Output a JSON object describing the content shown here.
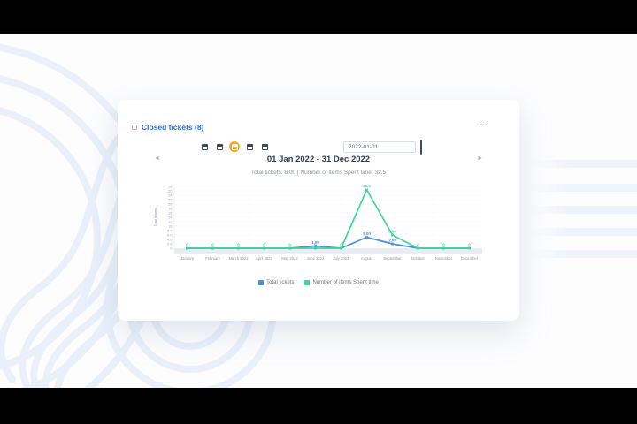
{
  "card": {
    "title": "Closed tickets (8)",
    "accent_color": "#2b6cd9",
    "menu_label": "...",
    "period_selectors": [
      {
        "icon": "calendar-icon",
        "active": false
      },
      {
        "icon": "calendar-icon",
        "active": false
      },
      {
        "icon": "calendar-icon",
        "active": true
      },
      {
        "icon": "calendar-icon",
        "active": false
      },
      {
        "icon": "calendar-icon",
        "active": false
      }
    ],
    "active_period_color": "#f6a821",
    "date_input": {
      "value": "2022-01-01",
      "picker_icon": "calendar-icon"
    },
    "nav": {
      "prev_label": "◄",
      "range_title": "01 Jan 2022 - 31 Dec 2022",
      "next_label": "►"
    },
    "stats_line": "Total tickets: 8.00 | Number of items Spent time: 32.5"
  },
  "chart_data": {
    "type": "line",
    "title": "",
    "categories": [
      "January",
      "February",
      "March 2022",
      "April 2022",
      "May 2022",
      "June 2022",
      "July 2022",
      "August",
      "September",
      "October",
      "November",
      "December"
    ],
    "series": [
      {
        "name": "Total tickets",
        "color": "#4a90e2",
        "values": [
          0,
          0,
          0,
          0,
          0,
          1,
          0,
          5,
          2,
          0,
          0,
          0
        ],
        "point_labels": [
          "",
          "",
          "",
          "",
          "",
          "1.00",
          "",
          "5.00",
          "2.00",
          "",
          "",
          ""
        ]
      },
      {
        "name": "Number of items Spent time",
        "color": "#3ed598",
        "values": [
          0,
          0,
          0,
          0,
          0,
          0,
          0,
          26.5,
          6,
          0,
          0,
          0
        ],
        "point_labels": [
          "0",
          "0",
          "0",
          "0",
          "0",
          "0",
          "0",
          "26.5",
          "6.00",
          "0",
          "0",
          "0"
        ]
      }
    ],
    "ylabel": "Total tickets",
    "xlabel": "",
    "ylim": [
      0,
      28
    ],
    "ytick_labels": [
      "0",
      "2.0",
      "4.0",
      "6.0",
      "8.0",
      "10",
      "12",
      "14",
      "16",
      "18",
      "20",
      "22",
      "24",
      "26",
      "28"
    ],
    "grid": "dotted-horizontal",
    "legend_position": "bottom"
  }
}
